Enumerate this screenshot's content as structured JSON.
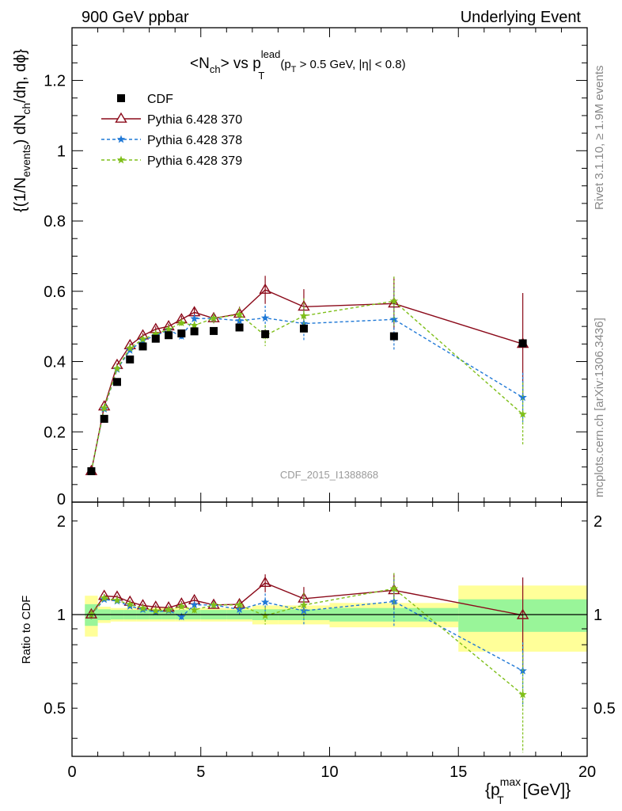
{
  "header": {
    "left": "900 GeV ppbar",
    "right": "Underlying Event"
  },
  "chart_data": {
    "type": "scatter",
    "title_parts": {
      "lt": "<N",
      "ch": "ch",
      "vs": "> vs p",
      "lead": "lead",
      "T": "T",
      "cut_open": "(p",
      "cut_T": "T",
      "cut_rest": " > 0.5 GeV, |η| < 0.8)"
    },
    "ylabel_parts": {
      "a": "{(1/N",
      "events": "events",
      "b": ") dN",
      "ch": "ch",
      "c": "/dη, dϕ}"
    },
    "xlabel_parts": {
      "a": "{p",
      "max": "max",
      "T": "T",
      "b": " [GeV]}"
    },
    "ratio_ylabel": "Ratio to CDF",
    "watermark": "CDF_2015_I1388868",
    "side_text_top": "Rivet 3.1.10, ≥ 1.9M events",
    "side_text_bottom": "mcplots.cern.ch [arXiv:1306.3436]",
    "xlim": [
      0,
      20
    ],
    "ylim": [
      0,
      1.35
    ],
    "ratio_ylim": [
      0.35,
      2.3
    ],
    "x_ticks": [
      "0",
      "5",
      "10",
      "15",
      "20"
    ],
    "y_ticks": [
      "0",
      "0.2",
      "0.4",
      "0.6",
      "0.8",
      "1",
      "1.2"
    ],
    "ratio_ticks": [
      "0.5",
      "1",
      "2"
    ],
    "legend_position": "top-left",
    "grid": false,
    "data": {
      "name": "CDF",
      "x": [
        0.75,
        1.25,
        1.75,
        2.25,
        2.75,
        3.25,
        3.75,
        4.25,
        4.75,
        5.5,
        6.5,
        7.5,
        9.0,
        12.5,
        17.5
      ],
      "y": [
        0.088,
        0.237,
        0.342,
        0.406,
        0.443,
        0.465,
        0.475,
        0.48,
        0.486,
        0.487,
        0.497,
        0.478,
        0.494,
        0.472,
        0.452
      ],
      "xerr": [
        0.25,
        0.25,
        0.25,
        0.25,
        0.25,
        0.25,
        0.25,
        0.25,
        0.25,
        0.5,
        0.5,
        0.5,
        1.0,
        2.5,
        2.5
      ],
      "band_yellow": [
        0.15,
        0.06,
        0.05,
        0.05,
        0.05,
        0.05,
        0.05,
        0.05,
        0.05,
        0.05,
        0.05,
        0.07,
        0.07,
        0.09,
        0.24
      ],
      "band_green": [
        0.08,
        0.04,
        0.035,
        0.035,
        0.035,
        0.035,
        0.035,
        0.035,
        0.035,
        0.035,
        0.035,
        0.04,
        0.04,
        0.05,
        0.12
      ]
    },
    "series": [
      {
        "name": "Pythia 6.428 370",
        "color": "#8b0a1a",
        "style": "solid",
        "marker": "triangle",
        "x": [
          0.75,
          1.25,
          1.75,
          2.25,
          2.75,
          3.25,
          3.75,
          4.25,
          4.75,
          5.5,
          6.5,
          7.5,
          9.0,
          12.5,
          17.5
        ],
        "y": [
          0.088,
          0.272,
          0.39,
          0.446,
          0.474,
          0.492,
          0.5,
          0.52,
          0.54,
          0.523,
          0.536,
          0.604,
          0.556,
          0.565,
          0.45
        ],
        "yerr": [
          0.003,
          0.004,
          0.005,
          0.006,
          0.007,
          0.008,
          0.008,
          0.01,
          0.012,
          0.014,
          0.02,
          0.04,
          0.05,
          0.075,
          0.145
        ]
      },
      {
        "name": "Pythia 6.428 378",
        "color": "#1f78d6",
        "style": "dashed",
        "marker": "star",
        "x": [
          0.75,
          1.25,
          1.75,
          2.25,
          2.75,
          3.25,
          3.75,
          4.25,
          4.75,
          5.5,
          6.5,
          7.5,
          9.0,
          12.5,
          17.5
        ],
        "y": [
          0.088,
          0.265,
          0.378,
          0.432,
          0.46,
          0.474,
          0.49,
          0.472,
          0.522,
          0.523,
          0.516,
          0.524,
          0.508,
          0.52,
          0.298
        ],
        "yerr": [
          0.003,
          0.004,
          0.005,
          0.006,
          0.007,
          0.008,
          0.008,
          0.01,
          0.012,
          0.014,
          0.02,
          0.035,
          0.05,
          0.09,
          0.07
        ]
      },
      {
        "name": "Pythia 6.428 379",
        "color": "#7fbf1a",
        "style": "dashed",
        "marker": "star",
        "x": [
          0.75,
          1.25,
          1.75,
          2.25,
          2.75,
          3.25,
          3.75,
          4.25,
          4.75,
          5.5,
          6.5,
          7.5,
          9.0,
          12.5,
          17.5
        ],
        "y": [
          0.088,
          0.268,
          0.38,
          0.438,
          0.464,
          0.478,
          0.492,
          0.51,
          0.503,
          0.523,
          0.534,
          0.474,
          0.53,
          0.572,
          0.25
        ],
        "yerr": [
          0.003,
          0.004,
          0.005,
          0.006,
          0.007,
          0.008,
          0.008,
          0.01,
          0.012,
          0.014,
          0.02,
          0.03,
          0.05,
          0.07,
          0.09
        ]
      }
    ]
  }
}
